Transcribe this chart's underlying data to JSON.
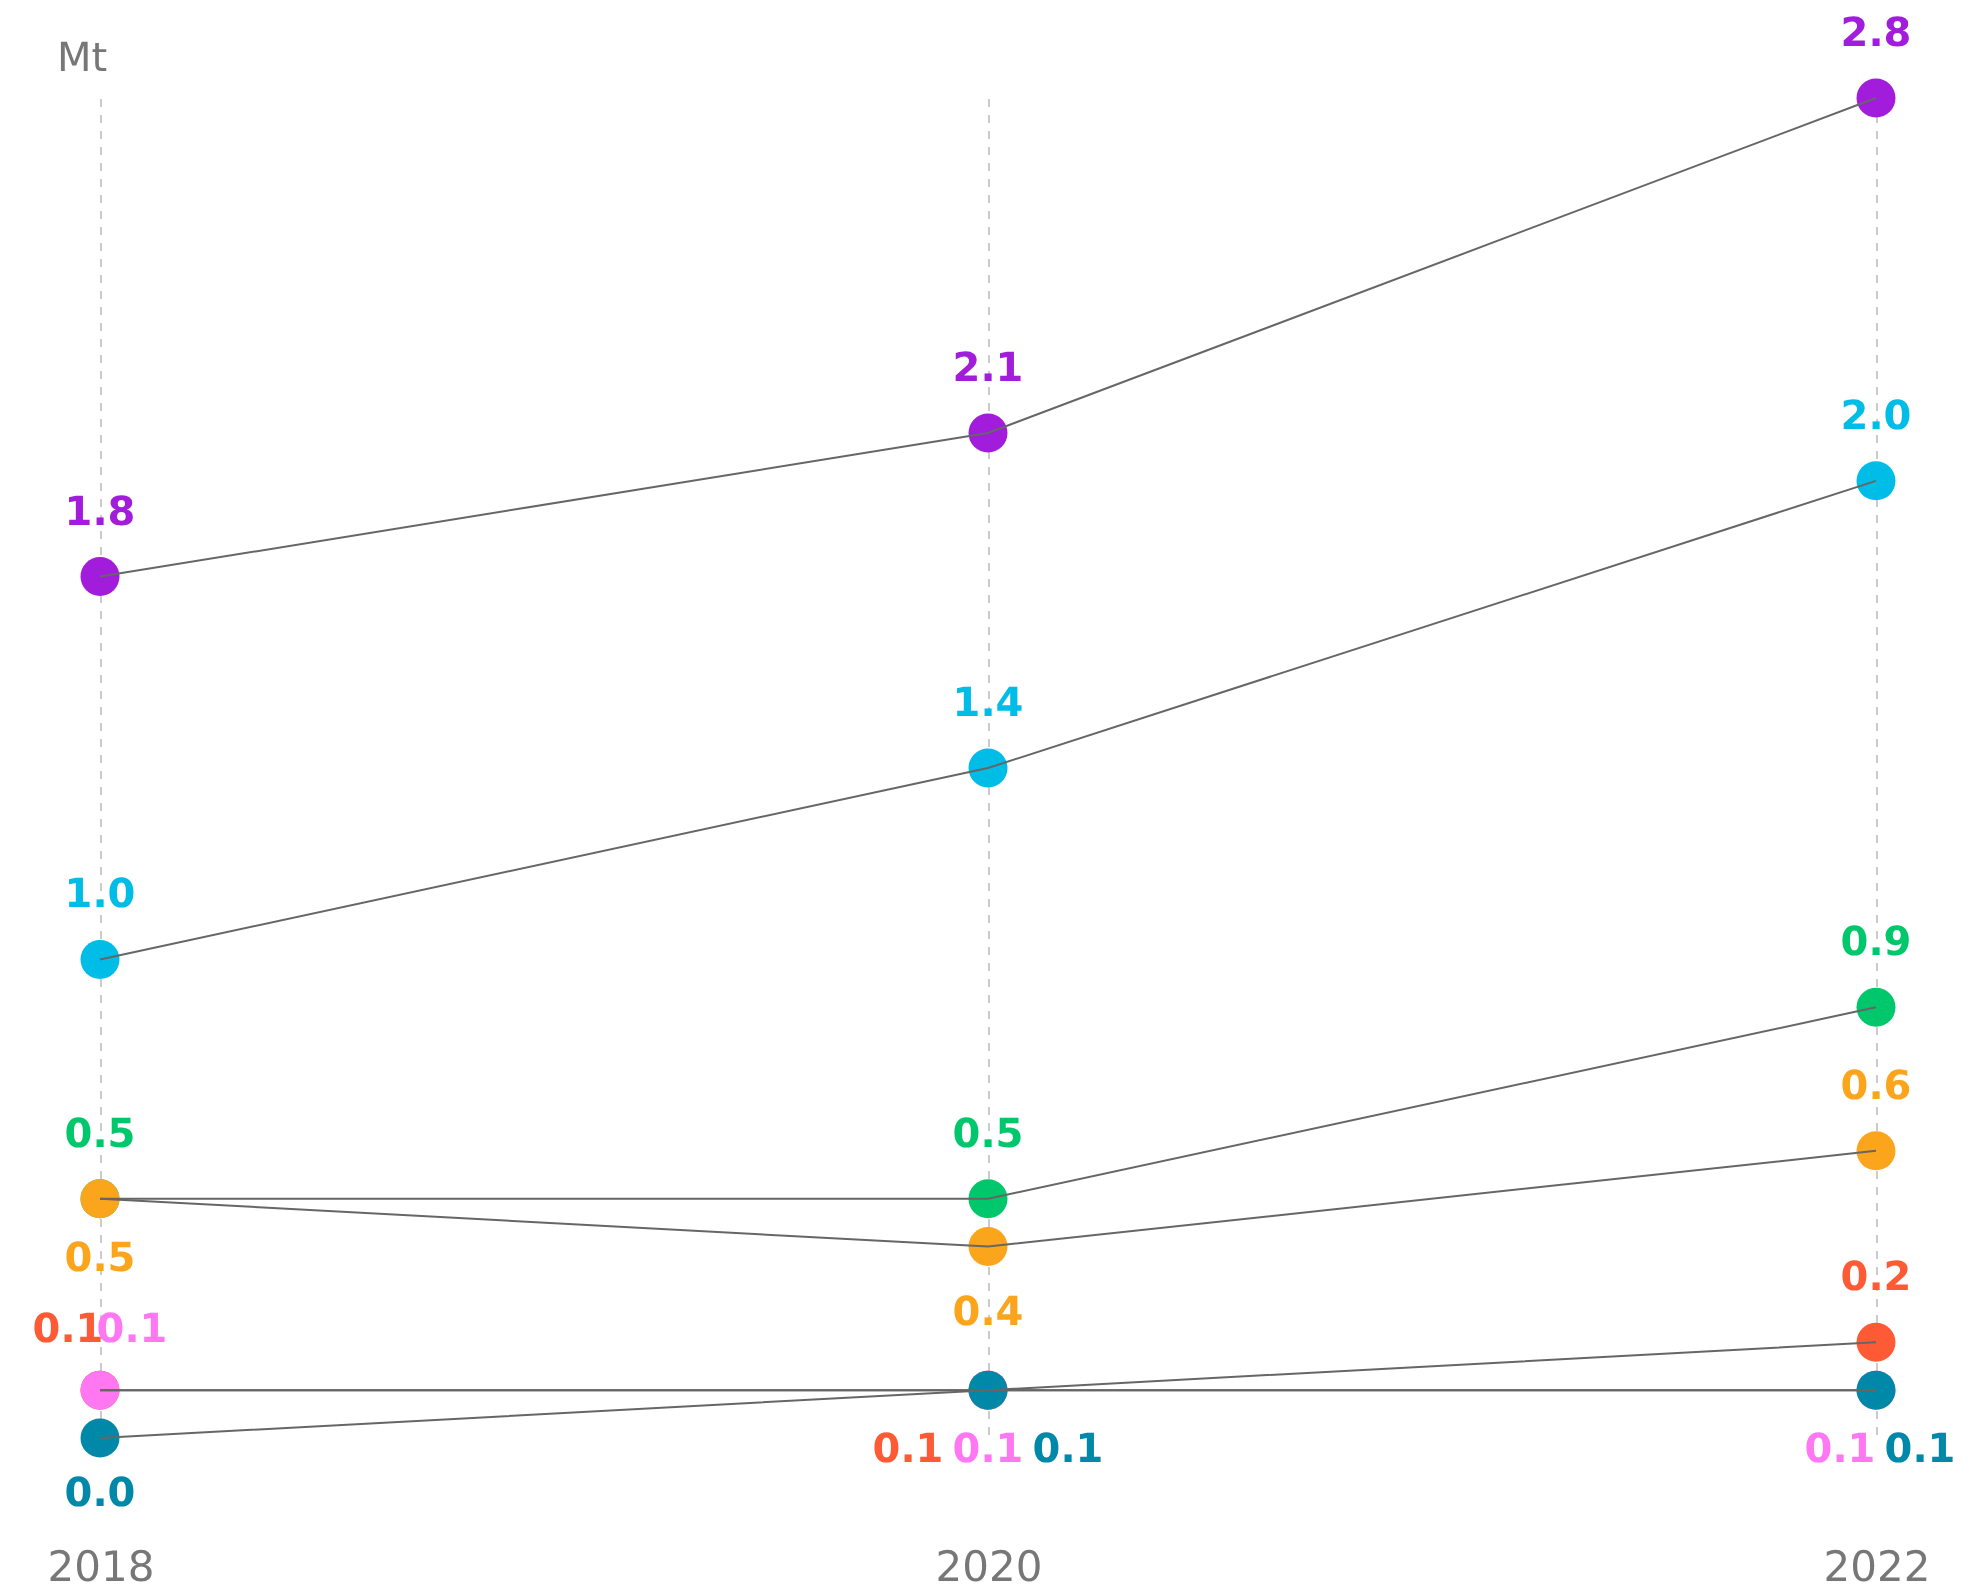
{
  "chart_data": {
    "type": "line",
    "ylabel": "Mt",
    "categories": [
      "2018",
      "2020",
      "2022"
    ],
    "grid": "x",
    "marker": "circle",
    "series": [
      {
        "color": "#666666",
        "colors": [
          "#a21cdb",
          "#a21cdb",
          "#a21cdb"
        ],
        "values": [
          1.8,
          2.1,
          2.8
        ],
        "value_labels": [
          "1.8",
          "2.1",
          "2.8"
        ]
      },
      {
        "color": "#666666",
        "colors": [
          "#00bde8",
          "#00bde8",
          "#00bde8"
        ],
        "values": [
          1.0,
          1.4,
          2.0
        ],
        "value_labels": [
          "1.0",
          "1.4",
          "2.0"
        ]
      },
      {
        "color": "#666666",
        "colors": [
          "#00c76b",
          "#00c76b",
          "#00c76b"
        ],
        "values": [
          0.5,
          0.5,
          0.9
        ],
        "value_labels": [
          "0.5",
          "0.5",
          "0.9"
        ]
      },
      {
        "color": "#666666",
        "colors": [
          "#fba51c",
          "#fba51c",
          "#fba51c"
        ],
        "values": [
          0.5,
          0.4,
          0.6
        ],
        "value_labels": [
          "0.5",
          "0.4",
          "0.6"
        ]
      },
      {
        "color": "#666666",
        "colors": [
          "#ff5a36",
          "#ff5a36",
          "#ff5a36"
        ],
        "values": [
          0.1,
          0.1,
          0.2
        ],
        "value_labels": [
          "0.1",
          "0.1",
          "0.2"
        ]
      },
      {
        "color": "#666666",
        "colors": [
          "#ff78f2",
          "#ff78f2",
          "#ff78f2"
        ],
        "values": [
          0.1,
          0.1,
          0.1
        ],
        "value_labels": [
          "0.1",
          "0.1",
          "0.1"
        ]
      },
      {
        "color": "#666666",
        "colors": [
          "#0088a9",
          "#0088a9",
          "#0088a9"
        ],
        "values": [
          0.0,
          0.1,
          0.1
        ],
        "value_labels": [
          "0.0",
          "0.1",
          "0.1"
        ]
      }
    ]
  }
}
